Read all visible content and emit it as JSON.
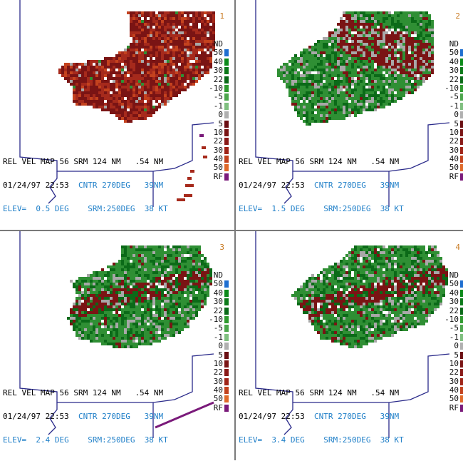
{
  "panels": [
    {
      "id": "1",
      "header": "REL VEL MAP 56 SRM 124 NM   .54 NM",
      "datetime": "01/24/97 22:53",
      "center": "CNTR 270DEG   39NM",
      "elev": "ELEV=  0.5 DEG",
      "srm": "SRM:250DEG  38 KT",
      "dominant": "inbound"
    },
    {
      "id": "2",
      "header": "REL VEL MAP 56 SRM 124 NM   .54 NM",
      "datetime": "01/24/97 22:53",
      "center": "CNTR 270DEG   39NM",
      "elev": "ELEV=  1.5 DEG",
      "srm": "SRM:250DEG  38 KT",
      "dominant": "mixed"
    },
    {
      "id": "3",
      "header": "REL VEL MAP 56 SRM 124 NM   .54 NM",
      "datetime": "01/24/97 22:53",
      "center": "CNTR 270DEG   39NM",
      "elev": "ELEV=  2.4 DEG",
      "srm": "SRM:250DEG  38 KT",
      "dominant": "outbound"
    },
    {
      "id": "4",
      "header": "REL VEL MAP 56 SRM 124 NM   .54 NM",
      "datetime": "01/24/97 22:53",
      "center": "CNTR 270DEG   39NM",
      "elev": "ELEV=  3.4 DEG",
      "srm": "SRM:250DEG  38 KT",
      "dominant": "outbound"
    }
  ],
  "legend": [
    {
      "label": "ND",
      "color": "#ffffff"
    },
    {
      "label": "50",
      "color": "#1f6fd0"
    },
    {
      "label": "40",
      "color": "#0b8a1a"
    },
    {
      "label": "30",
      "color": "#0c7a1a"
    },
    {
      "label": "22",
      "color": "#0a6a18"
    },
    {
      "label": "-10",
      "color": "#2f9a2f"
    },
    {
      "label": "-5",
      "color": "#4ca64c"
    },
    {
      "label": "-1",
      "color": "#7fbf7f"
    },
    {
      "label": "0",
      "color": "#b0b0b0"
    },
    {
      "label": "5",
      "color": "#6a0e12"
    },
    {
      "label": "10",
      "color": "#7a1414"
    },
    {
      "label": "22",
      "color": "#8a1a18"
    },
    {
      "label": "30",
      "color": "#a02418"
    },
    {
      "label": "40",
      "color": "#c2421e"
    },
    {
      "label": "50",
      "color": "#e06a2a"
    },
    {
      "label": "RF",
      "color": "#7a1a7a"
    }
  ],
  "colors": {
    "inbound_dark": "#7a1414",
    "inbound_mid": "#a62a1c",
    "inbound_light": "#c4421e",
    "outbound_dark": "#0b6a18",
    "outbound_mid": "#2f8f34",
    "outbound_light": "#4ea44e",
    "zero": "#a8a8a8",
    "rf": "#7a1a7a",
    "border": "#2a2a8a",
    "info_accent": "#1f7fc8",
    "panel_number": "#c8781e"
  }
}
